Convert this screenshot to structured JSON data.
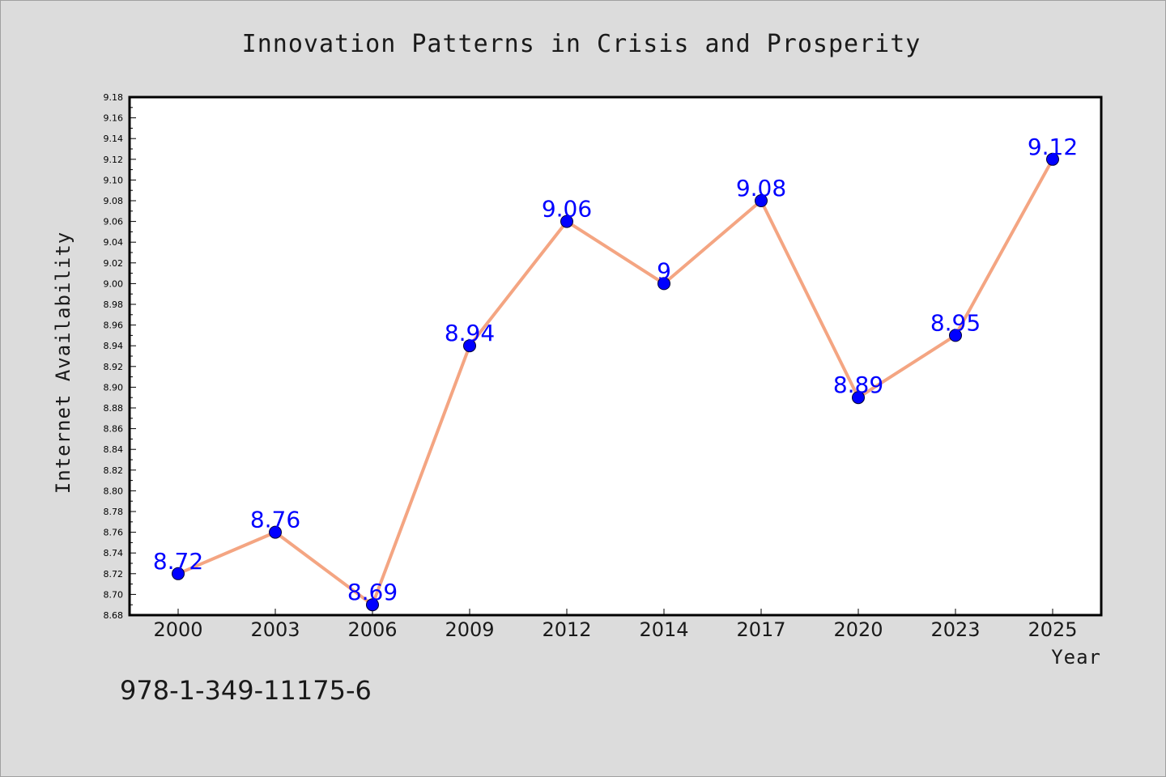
{
  "chart_data": {
    "type": "line",
    "title": "Innovation Patterns in Crisis and Prosperity",
    "xlabel": "Year",
    "ylabel": "Internet Availability",
    "categories": [
      "2000",
      "2003",
      "2006",
      "2009",
      "2012",
      "2014",
      "2017",
      "2020",
      "2023",
      "2025"
    ],
    "values": [
      8.72,
      8.76,
      8.69,
      8.94,
      9.06,
      9.0,
      9.08,
      8.89,
      8.95,
      9.12
    ],
    "data_labels": [
      "8.72",
      "8.76",
      "8.69",
      "8.94",
      "9.06",
      "9",
      "9.08",
      "8.89",
      "8.95",
      "9.12"
    ],
    "ylim": [
      8.68,
      9.18
    ],
    "ytick_step": 0.02,
    "grid": false,
    "line_color": "#f4a582",
    "marker_color": "#0000ff",
    "label_color": "#0000ff"
  },
  "footnote": "978-1-349-11175-6"
}
